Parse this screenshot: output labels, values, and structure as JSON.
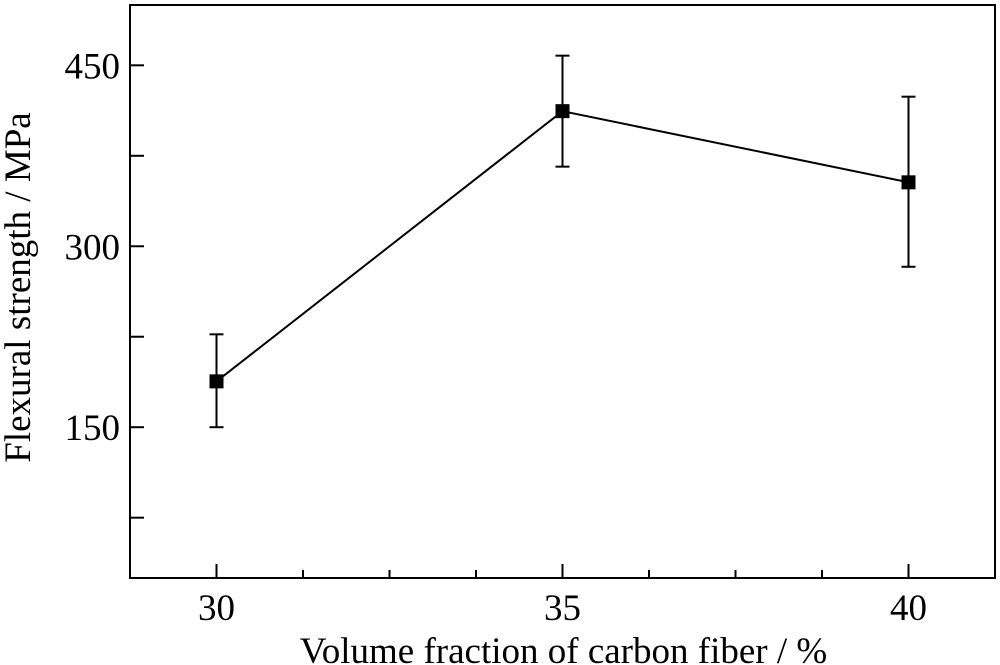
{
  "chart_data": {
    "type": "line",
    "title": "",
    "xlabel": "Volume fraction of carbon fiber / %",
    "ylabel": "Flexural strength / MPa",
    "xlim": [
      28.75,
      41.25
    ],
    "ylim": [
      25,
      500
    ],
    "x_ticks_major": [
      30,
      35,
      40
    ],
    "x_ticks_minor": [
      31.25,
      32.5,
      33.75,
      36.25,
      37.5,
      38.75
    ],
    "y_ticks_labeled": [
      150,
      300,
      450
    ],
    "y_ticks_unlabeled": [
      75,
      225,
      375
    ],
    "grid": false,
    "legend": "none",
    "marker": "square",
    "color": "#000000",
    "series": [
      {
        "x": [
          30,
          35,
          40
        ],
        "y": [
          188,
          412,
          353
        ],
        "error_low": [
          150,
          366,
          283
        ],
        "error_high": [
          227,
          458,
          424
        ]
      }
    ]
  }
}
